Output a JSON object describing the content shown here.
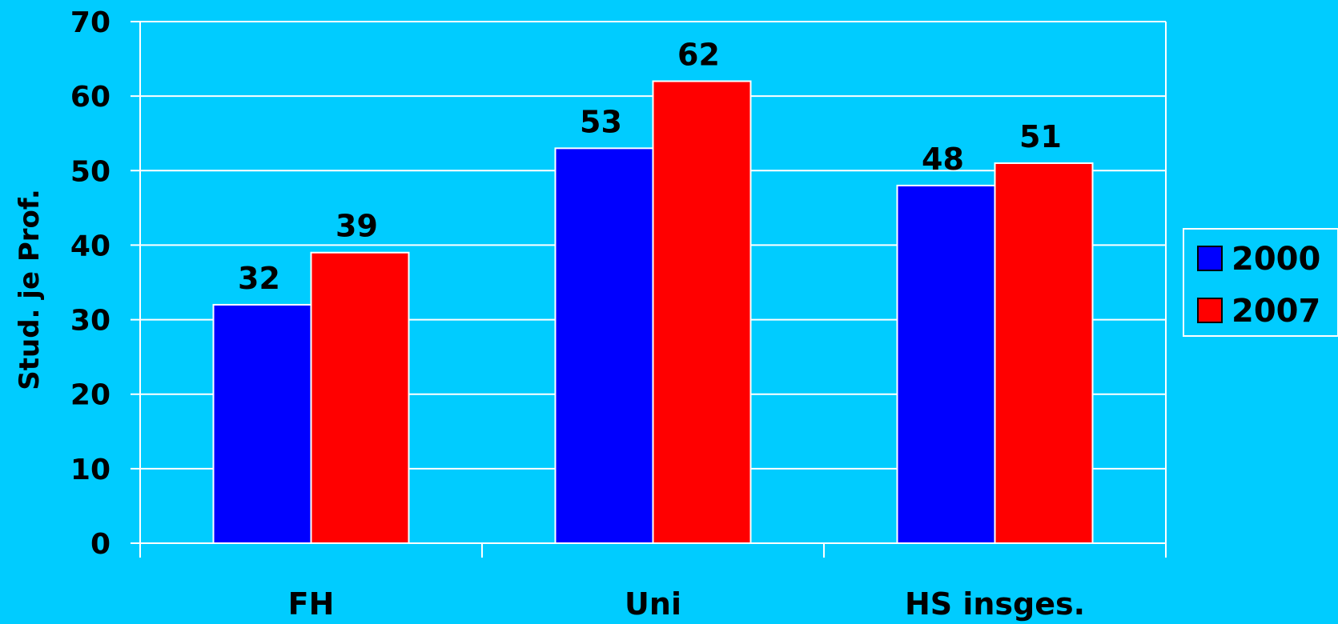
{
  "colors": {
    "background": "#00ccff",
    "gridline": "#ffffff",
    "axis": "#ffffff",
    "bar_border": "#ffffff",
    "text": "#000000"
  },
  "chart_data": {
    "type": "bar",
    "categories": [
      "FH",
      "Uni",
      "HS insges."
    ],
    "series": [
      {
        "name": "2000",
        "color": "#0000ff",
        "values": [
          32,
          53,
          48
        ]
      },
      {
        "name": "2007",
        "color": "#ff0000",
        "values": [
          39,
          62,
          51
        ]
      }
    ],
    "title": "",
    "xlabel": "",
    "ylabel": "Stud. je Prof.",
    "ylim": [
      0,
      70
    ],
    "yticks": [
      0,
      10,
      20,
      30,
      40,
      50,
      60,
      70
    ],
    "grid": true,
    "legend_position": "right",
    "data_labels": true
  }
}
